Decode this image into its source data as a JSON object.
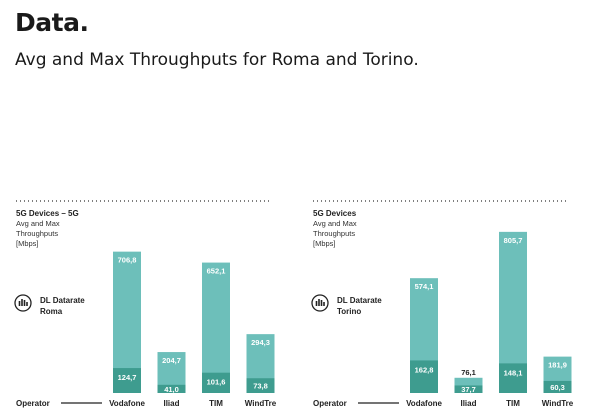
{
  "header": {
    "brand": "Data.",
    "headline": "Avg and Max Throughputs for Roma and Torino."
  },
  "colors": {
    "max_bar": "#6dbfba",
    "avg_bar": "#3e9c8f",
    "text_dark": "#222222",
    "text_light": "#ffffff"
  },
  "icon": "datarate-bars-icon",
  "chart_data": [
    {
      "type": "bar",
      "title": "5G Devices – 5G",
      "subtitle_lines": [
        "Avg and Max",
        "Throughputs",
        "[Mbps]"
      ],
      "legend": "DL Datarate Roma",
      "axis_label": "Operator",
      "categories": [
        "Vodafone",
        "Iliad",
        "TIM",
        "WindTre"
      ],
      "series": [
        {
          "values": [
            706.8,
            204.7,
            652.1,
            294.3
          ],
          "labels": [
            "706,8",
            "204,7",
            "652,1",
            "294,3"
          ]
        },
        {
          "values": [
            124.7,
            41.0,
            101.6,
            73.8
          ],
          "labels": [
            "124,7",
            "41,0",
            "101,6",
            "73,8"
          ]
        }
      ],
      "ylim": [
        0,
        850
      ],
      "grid": false
    },
    {
      "type": "bar",
      "title": "5G Devices",
      "subtitle_lines": [
        "Avg and Max",
        "Throughputs",
        "[Mbps]"
      ],
      "legend": "DL Datarate Torino",
      "axis_label": "Operator",
      "categories": [
        "Vodafone",
        "Iliad",
        "TIM",
        "WindTre"
      ],
      "series": [
        {
          "values": [
            574.1,
            76.1,
            805.7,
            181.9
          ],
          "labels": [
            "574,1",
            "76,1",
            "805,7",
            "181,9"
          ]
        },
        {
          "values": [
            162.8,
            37.7,
            148.1,
            60.3
          ],
          "labels": [
            "162,8",
            "37,7",
            "148,1",
            "60,3"
          ]
        }
      ],
      "ylim": [
        0,
        850
      ],
      "grid": false
    }
  ]
}
